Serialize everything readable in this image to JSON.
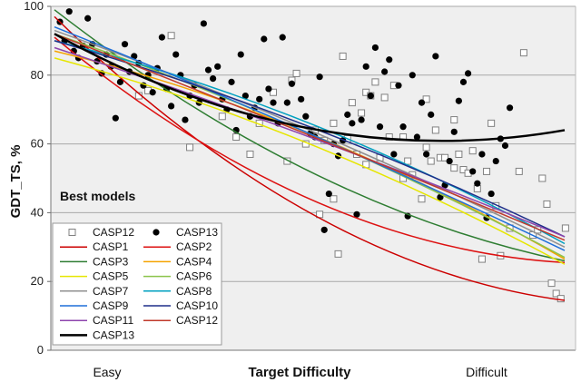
{
  "chart_data": {
    "type": "scatter",
    "ylabel": "GDT_TS, %",
    "xlabel": "Target Difficulty",
    "x_category_labels": [
      "Easy",
      "Difficult"
    ],
    "annotation": "Best models",
    "ylim": [
      0,
      100
    ],
    "xlim": [
      0,
      100
    ],
    "yticks": [
      0,
      20,
      40,
      60,
      80,
      100
    ],
    "grid": true,
    "legend_position": "bottom-left",
    "scatter_series": [
      {
        "name": "CASP12",
        "marker": "open-square",
        "color": "#808080",
        "points": [
          [
            24,
            91.5
          ],
          [
            19,
            75.5
          ],
          [
            17,
            74
          ],
          [
            28,
            59
          ],
          [
            35,
            68
          ],
          [
            38,
            62
          ],
          [
            41,
            57
          ],
          [
            43,
            66
          ],
          [
            46,
            75
          ],
          [
            50,
            78.5
          ],
          [
            51,
            80.5
          ],
          [
            53,
            60
          ],
          [
            55,
            64
          ],
          [
            57,
            61
          ],
          [
            59,
            66
          ],
          [
            61,
            85.5
          ],
          [
            62,
            61.5
          ],
          [
            63,
            72
          ],
          [
            64,
            57
          ],
          [
            65,
            69
          ],
          [
            66,
            75
          ],
          [
            67,
            74
          ],
          [
            68,
            78
          ],
          [
            69,
            56
          ],
          [
            70,
            73.5
          ],
          [
            72,
            77
          ],
          [
            74,
            62
          ],
          [
            75,
            55
          ],
          [
            76,
            51
          ],
          [
            78,
            44
          ],
          [
            79,
            59
          ],
          [
            80,
            55
          ],
          [
            81,
            64
          ],
          [
            82,
            56
          ],
          [
            83,
            56
          ],
          [
            85,
            53
          ],
          [
            86,
            57
          ],
          [
            87,
            52.5
          ],
          [
            88,
            51.5
          ],
          [
            90,
            47
          ],
          [
            91,
            26.5
          ],
          [
            92,
            52
          ],
          [
            94,
            42
          ],
          [
            95,
            27.5
          ],
          [
            97,
            35.5
          ],
          [
            99,
            52
          ],
          [
            100,
            86.5
          ],
          [
            102,
            33.5
          ],
          [
            103,
            35
          ],
          [
            104,
            50
          ],
          [
            105,
            42.5
          ],
          [
            106,
            19.5
          ],
          [
            107,
            16.5
          ],
          [
            108,
            15
          ],
          [
            109,
            35.5
          ],
          [
            56,
            39.5
          ],
          [
            59,
            44
          ],
          [
            60,
            28
          ],
          [
            74,
            50
          ],
          [
            66,
            54
          ],
          [
            49,
            55
          ],
          [
            71,
            62
          ],
          [
            79,
            73
          ],
          [
            85,
            67
          ],
          [
            89,
            58
          ],
          [
            93,
            66
          ]
        ]
      },
      {
        "name": "CASP13",
        "marker": "filled-circle",
        "color": "#000000",
        "points": [
          [
            0,
            95.5
          ],
          [
            2,
            98.5
          ],
          [
            1,
            90
          ],
          [
            3,
            87
          ],
          [
            4,
            85
          ],
          [
            5,
            88.5
          ],
          [
            6,
            96.5
          ],
          [
            7,
            89
          ],
          [
            8,
            84
          ],
          [
            9,
            80.5
          ],
          [
            10,
            86
          ],
          [
            11,
            82.5
          ],
          [
            12,
            67.5
          ],
          [
            13,
            78
          ],
          [
            14,
            89
          ],
          [
            15,
            81
          ],
          [
            16,
            85.5
          ],
          [
            17,
            83.5
          ],
          [
            18,
            77
          ],
          [
            19,
            80
          ],
          [
            20,
            75
          ],
          [
            21,
            82
          ],
          [
            22,
            91
          ],
          [
            23,
            76
          ],
          [
            24,
            71
          ],
          [
            25,
            86
          ],
          [
            26,
            80
          ],
          [
            27,
            67
          ],
          [
            28,
            74
          ],
          [
            29,
            77
          ],
          [
            30,
            72
          ],
          [
            31,
            95
          ],
          [
            32,
            81.5
          ],
          [
            33,
            79
          ],
          [
            34,
            82.5
          ],
          [
            35,
            73
          ],
          [
            36,
            70
          ],
          [
            37,
            78
          ],
          [
            38,
            64
          ],
          [
            39,
            86
          ],
          [
            40,
            74
          ],
          [
            41,
            68
          ],
          [
            42,
            70.5
          ],
          [
            43,
            73
          ],
          [
            44,
            90.5
          ],
          [
            45,
            76
          ],
          [
            46,
            72
          ],
          [
            47,
            66
          ],
          [
            48,
            91
          ],
          [
            49,
            72
          ],
          [
            50,
            77.5
          ],
          [
            52,
            73
          ],
          [
            53,
            68
          ],
          [
            54,
            63
          ],
          [
            55,
            62
          ],
          [
            56,
            79.5
          ],
          [
            57,
            35
          ],
          [
            58,
            45.5
          ],
          [
            59,
            60
          ],
          [
            60,
            56.5
          ],
          [
            61,
            61
          ],
          [
            62,
            68.5
          ],
          [
            63,
            66
          ],
          [
            64,
            39.5
          ],
          [
            65,
            67
          ],
          [
            66,
            82.5
          ],
          [
            67,
            74
          ],
          [
            68,
            88
          ],
          [
            69,
            65
          ],
          [
            70,
            81
          ],
          [
            71,
            84.5
          ],
          [
            72,
            57
          ],
          [
            73,
            77
          ],
          [
            74,
            65
          ],
          [
            75,
            39
          ],
          [
            76,
            80
          ],
          [
            77,
            62
          ],
          [
            78,
            72
          ],
          [
            79,
            57
          ],
          [
            80,
            68.5
          ],
          [
            81,
            85.5
          ],
          [
            82,
            44.5
          ],
          [
            83,
            48
          ],
          [
            84,
            55
          ],
          [
            85,
            63.5
          ],
          [
            86,
            72.5
          ],
          [
            87,
            78
          ],
          [
            88,
            80.5
          ],
          [
            89,
            52
          ],
          [
            90,
            48.5
          ],
          [
            91,
            57
          ],
          [
            92,
            38.5
          ],
          [
            93,
            45.5
          ],
          [
            94,
            55
          ],
          [
            95,
            61.5
          ],
          [
            96,
            59.5
          ],
          [
            97,
            70.5
          ]
        ]
      }
    ],
    "trend_series": [
      {
        "name": "CASP1",
        "color": "#cc0000",
        "width": 1.5,
        "curve": [
          [
            0,
            97
          ],
          [
            50,
            40
          ],
          [
            100,
            14.5
          ]
        ]
      },
      {
        "name": "CASP2",
        "color": "#dd1111",
        "width": 1.5,
        "curve": [
          [
            0,
            91
          ],
          [
            50,
            44
          ],
          [
            100,
            25.5
          ]
        ]
      },
      {
        "name": "CASP3",
        "color": "#2e7d32",
        "width": 1.5,
        "curve": [
          [
            0,
            99
          ],
          [
            50,
            52
          ],
          [
            100,
            26
          ]
        ]
      },
      {
        "name": "CASP4",
        "color": "#f5a300",
        "width": 1.5,
        "curve": [
          [
            0,
            87
          ],
          [
            50,
            63
          ],
          [
            100,
            26.5
          ]
        ]
      },
      {
        "name": "CASP5",
        "color": "#e6e600",
        "width": 1.5,
        "curve": [
          [
            0,
            85
          ],
          [
            50,
            60
          ],
          [
            100,
            25
          ]
        ]
      },
      {
        "name": "CASP6",
        "color": "#8bc34a",
        "width": 1.5,
        "curve": [
          [
            0,
            92
          ],
          [
            50,
            63
          ],
          [
            100,
            27
          ]
        ]
      },
      {
        "name": "CASP7",
        "color": "#909090",
        "width": 1.5,
        "curve": [
          [
            0,
            93
          ],
          [
            50,
            64
          ],
          [
            100,
            30
          ]
        ]
      },
      {
        "name": "CASP8",
        "color": "#00a0c0",
        "width": 1.5,
        "curve": [
          [
            0,
            90
          ],
          [
            50,
            66
          ],
          [
            100,
            31
          ]
        ]
      },
      {
        "name": "CASP9",
        "color": "#1e6fd9",
        "width": 1.5,
        "curve": [
          [
            0,
            94
          ],
          [
            50,
            63
          ],
          [
            100,
            29
          ]
        ]
      },
      {
        "name": "CASP10",
        "color": "#1f2f8a",
        "width": 1.5,
        "curve": [
          [
            0,
            90
          ],
          [
            50,
            65
          ],
          [
            100,
            33
          ]
        ]
      },
      {
        "name": "CASP11",
        "color": "#8e44ad",
        "width": 1.5,
        "curve": [
          [
            0,
            88
          ],
          [
            50,
            62
          ],
          [
            100,
            33
          ]
        ]
      },
      {
        "name": "CASP12",
        "color": "#c0392b",
        "width": 1.5,
        "curve": [
          [
            0,
            92
          ],
          [
            50,
            62.5
          ],
          [
            100,
            32
          ]
        ]
      },
      {
        "name": "CASP13",
        "color": "#000000",
        "width": 2.5,
        "curve": [
          [
            0,
            92
          ],
          [
            50,
            64.5
          ],
          [
            100,
            64
          ]
        ]
      }
    ]
  }
}
